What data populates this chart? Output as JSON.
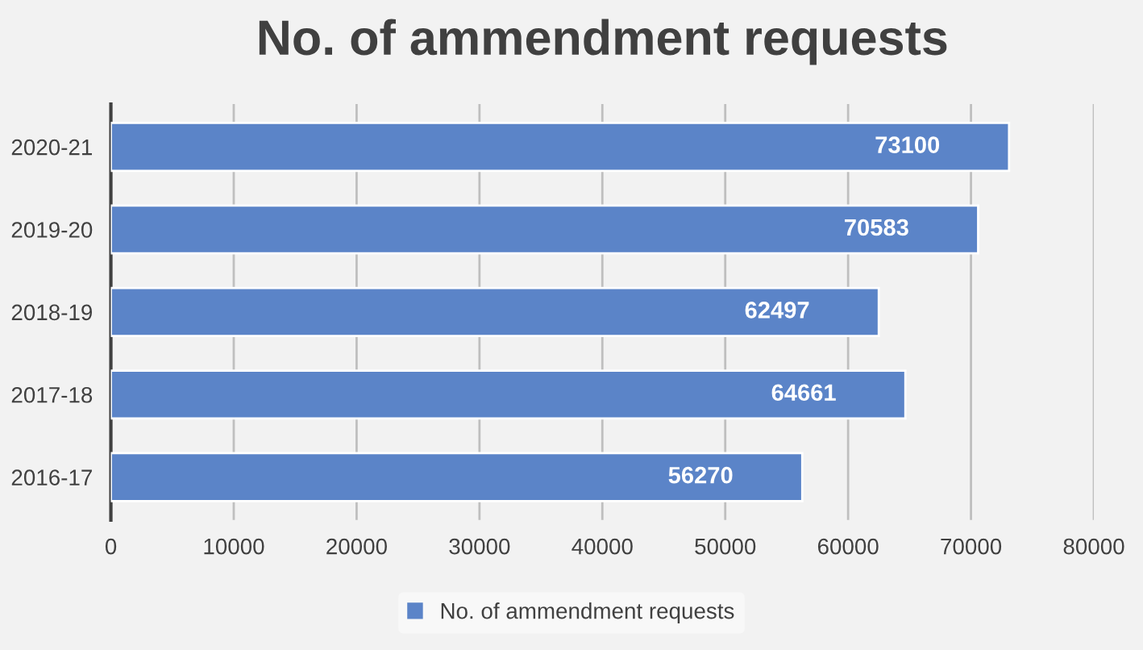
{
  "chart_data": {
    "type": "bar",
    "orientation": "horizontal",
    "title": "No. of ammendment requests",
    "categories": [
      "2020-21",
      "2019-20",
      "2018-19",
      "2017-18",
      "2016-17"
    ],
    "series": [
      {
        "name": "No. of ammendment requests",
        "color": "#5b84c8",
        "values": [
          73100,
          70583,
          62497,
          64661,
          56270
        ]
      }
    ],
    "xlim": [
      0,
      80000
    ],
    "xticks": [
      0,
      10000,
      20000,
      30000,
      40000,
      50000,
      60000,
      70000,
      80000
    ],
    "grid": "x",
    "legend": "bottom",
    "data_labels": true
  }
}
